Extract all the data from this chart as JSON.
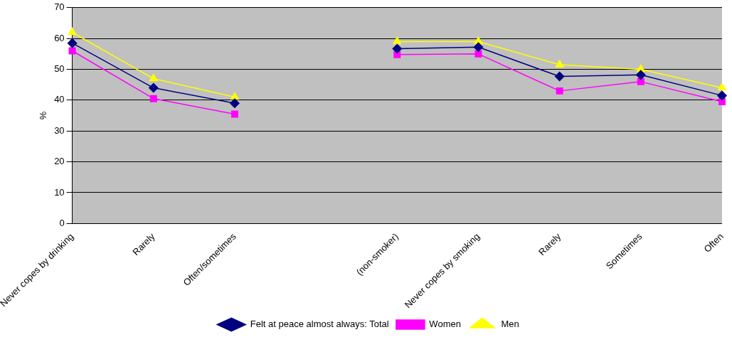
{
  "chart_data": {
    "type": "line",
    "ylabel": "%",
    "categories": [
      "Never copes by drinking",
      "Rarely",
      "Often/sometimes",
      null,
      "(non-smoker)",
      "Never copes by smoking",
      "Rarely",
      "Sometimes",
      "Often"
    ],
    "series": [
      {
        "name": "Felt at peace almost always: Total",
        "color": "#000080",
        "marker": "diamond",
        "values": [
          58.5,
          44,
          39,
          null,
          56.7,
          57.2,
          47.7,
          48.2,
          41.5
        ]
      },
      {
        "name": "Women",
        "color": "#ff00ff",
        "marker": "square",
        "values": [
          56,
          40.5,
          35.5,
          null,
          54.8,
          55,
          43,
          46,
          39.5
        ]
      },
      {
        "name": "Men",
        "color": "#ffff00",
        "marker": "triangle",
        "values": [
          62,
          47,
          41,
          null,
          59,
          59,
          51.5,
          50,
          44
        ]
      }
    ],
    "ylim": [
      0,
      70
    ],
    "yticks": [
      0,
      10,
      20,
      30,
      40,
      50,
      60,
      70
    ],
    "grid": "y",
    "legend": "bottom",
    "line_style": "solid"
  }
}
